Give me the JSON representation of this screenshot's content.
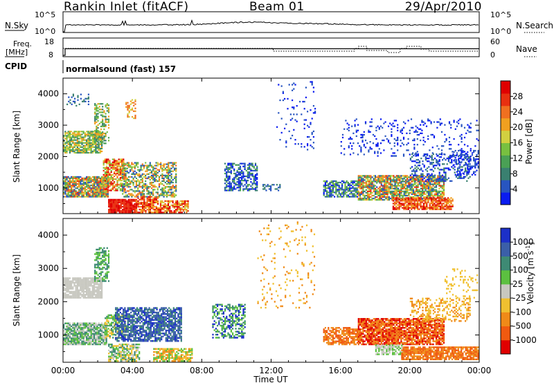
{
  "header": {
    "title": "Rankin Inlet (fitACF)",
    "beam": "Beam 01",
    "date": "29/Apr/2010"
  },
  "nsky_panel": {
    "label": "N.Sky",
    "right_label": "N.Search",
    "ticks_left": [
      "10^5",
      "10^0"
    ],
    "ticks_right": [
      "10^5",
      "10^0"
    ]
  },
  "freq_panel": {
    "label_line1": "Freq.",
    "label_line2": "[MHz]",
    "ticks_left": [
      "18",
      "8"
    ],
    "ticks_right": [
      "60",
      "0"
    ],
    "right_label": "Nave"
  },
  "cpid": {
    "label": "CPID",
    "value": "normalsound (fast) 157"
  },
  "chart_data": [
    {
      "type": "heatmap",
      "title": "",
      "ylabel": "Slant Range [km]",
      "xlabel": "",
      "x_ticks": [
        "00:00",
        "04:00",
        "08:00",
        "12:00",
        "16:00",
        "20:00",
        "00:00"
      ],
      "y_ticks": [
        "1000",
        "2000",
        "3000",
        "4000"
      ],
      "ylim": [
        180,
        4500
      ],
      "colorbar": {
        "label": "Power [dB]",
        "ticks": [
          "4",
          "8",
          "12",
          "16",
          "20",
          "24",
          "28"
        ],
        "colors": [
          "#0a1cf0",
          "#2855c0",
          "#3a8070",
          "#4aa055",
          "#78c040",
          "#d2d040",
          "#f0a020",
          "#f07020",
          "#e83010",
          "#e00000"
        ]
      }
    },
    {
      "type": "heatmap",
      "title": "",
      "ylabel": "Slant Range [km]",
      "xlabel": "Time UT",
      "x_ticks": [
        "00:00",
        "04:00",
        "08:00",
        "12:00",
        "16:00",
        "20:00",
        "00:00"
      ],
      "y_ticks": [
        "1000",
        "2000",
        "3000",
        "4000"
      ],
      "ylim": [
        180,
        4500
      ],
      "colorbar": {
        "label": "Velocity [m s",
        "label_sup": "-1",
        "label_close": "]",
        "ticks": [
          "1000",
          "500",
          "100",
          "25",
          "-25",
          "-100",
          "-500",
          "-1000"
        ],
        "colors": [
          "#1c30c8",
          "#3b5fa8",
          "#3e8a74",
          "#5cc040",
          "#c8c8c0",
          "#f0c030",
          "#f08a18",
          "#f05a10",
          "#e00000"
        ]
      }
    }
  ],
  "colors": {
    "frame": "#000000",
    "background": "#ffffff"
  }
}
